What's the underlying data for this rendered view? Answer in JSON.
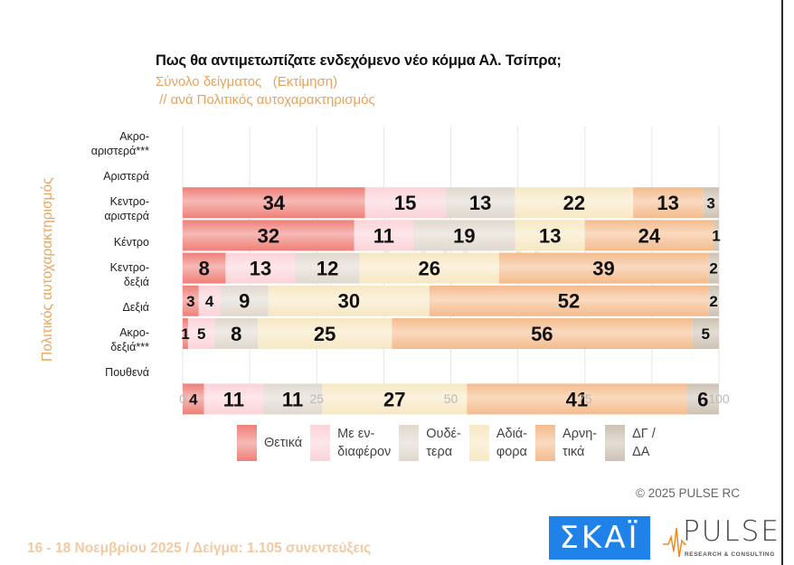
{
  "chart_data": {
    "type": "bar",
    "orientation": "horizontal",
    "stacked": true,
    "title": "Πως θα αντιμετωπίζατε ενδεχόμενο νέο κόμμα Αλ. Τσίπρα;",
    "subtitle": "Σύνολο δείγματος   (Εκτίμηση)",
    "subtitle2": " // ανά Πολιτικός αυτοχαρακτηρισμός",
    "ylabel": "Πολιτικός αυτοχαρακτηρισμός",
    "xlabel": "",
    "xlim": [
      0,
      100
    ],
    "xticks": [
      0,
      25,
      50,
      75,
      100
    ],
    "grid": true,
    "legend_position": "bottom",
    "categories": [
      "Ακρο-\nαριστερά***",
      "Αριστερά",
      "Κεντρο-\nαριστερά",
      "Κέντρο",
      "Κεντρο-\nδεξιά",
      "Δεξιά",
      "Ακρο-\nδεξιά***",
      "Πουθενά"
    ],
    "series": [
      {
        "name": "Θετικά",
        "legend": "Θετικά",
        "color": "#ef7f78",
        "values": [
          null,
          34,
          32,
          8,
          3,
          1,
          null,
          4
        ]
      },
      {
        "name": "Με ενδιαφέρον",
        "legend": "Με εν-\nδιαφέρον",
        "color": "#fbd3d8",
        "values": [
          null,
          15,
          11,
          13,
          4,
          5,
          null,
          11
        ]
      },
      {
        "name": "Ουδέτερα",
        "legend": "Ουδέ-\nτερα",
        "color": "#e0d8ce",
        "values": [
          null,
          13,
          19,
          12,
          9,
          8,
          null,
          11
        ]
      },
      {
        "name": "Αδιάφορα",
        "legend": "Αδιά-\nφορα",
        "color": "#f7e8c3",
        "values": [
          null,
          22,
          13,
          26,
          30,
          25,
          null,
          27
        ]
      },
      {
        "name": "Αρνητικά",
        "legend": "Αρνη-\nτικά",
        "color": "#f4bb8c",
        "values": [
          null,
          13,
          24,
          39,
          52,
          56,
          null,
          41
        ]
      },
      {
        "name": "ΔΓ / ΔΑ",
        "legend": "ΔΓ /\nΔΑ",
        "color": "#cdc2b3",
        "values": [
          null,
          3,
          1,
          2,
          2,
          5,
          null,
          6
        ]
      }
    ]
  },
  "footer": {
    "copyright": "©  2025  PULSE RC",
    "date_sample": "16 - 18 Νοεμβρίου 2025  /  Δείγμα:  1.105 συνεντεύξεις"
  },
  "logos": {
    "skai": "ΣΚΑΪ",
    "pulse": "PULSE",
    "pulse_sub": "RESEARCH & CONSULTING"
  },
  "watermark": {
    "text": "PULSE",
    "sub": "RESEARCH & CONSULTING"
  }
}
